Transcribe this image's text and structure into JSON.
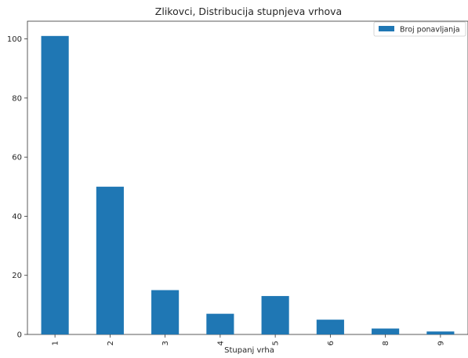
{
  "chart_data": {
    "type": "bar",
    "title": "Zlikovci, Distribucija stupnjeva vrhova",
    "xlabel": "Stupanj vrha",
    "ylabel": "",
    "categories": [
      "1",
      "2",
      "3",
      "4",
      "5",
      "6",
      "8",
      "9"
    ],
    "series": [
      {
        "name": "Broj ponavljanja",
        "values": [
          101,
          50,
          15,
          7,
          13,
          5,
          2,
          1
        ],
        "color": "#1f77b4"
      }
    ],
    "ylim": [
      0,
      106
    ],
    "yticks": [
      0,
      20,
      40,
      60,
      80,
      100
    ],
    "grid": false,
    "legend_position": "top-right",
    "x_tick_rotation": "vertical"
  }
}
